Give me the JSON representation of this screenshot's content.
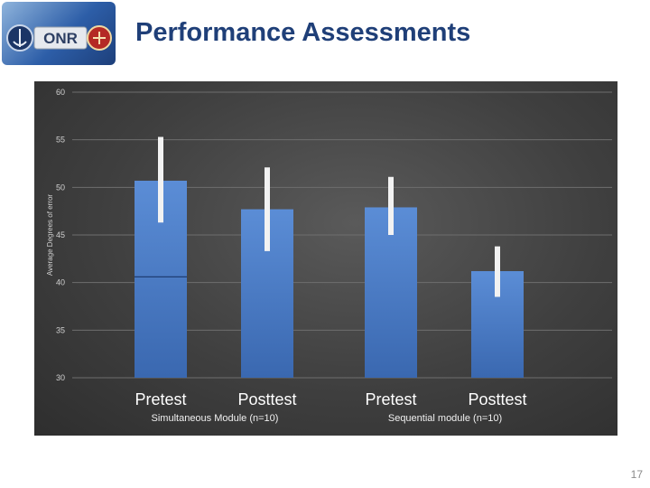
{
  "header": {
    "title": "Performance Assessments",
    "logo_text": "ONR"
  },
  "page": {
    "number": "17"
  },
  "chart_data": {
    "type": "bar",
    "ylabel": "Average Degrees of error",
    "ylim": [
      30,
      60
    ],
    "yticks": [
      30,
      35,
      40,
      45,
      50,
      55,
      60
    ],
    "grid": true,
    "groups": [
      {
        "label": "Simultaneous Module (n=10)",
        "bars": [
          {
            "category": "Pretest",
            "value": 50.7,
            "err_low": 46.3,
            "err_high": 55.3,
            "inner_line": 40.6
          },
          {
            "category": "Posttest",
            "value": 47.7,
            "err_low": 43.3,
            "err_high": 52.1
          }
        ]
      },
      {
        "label": "Sequential module (n=10)",
        "bars": [
          {
            "category": "Pretest",
            "value": 47.9,
            "err_low": 45.0,
            "err_high": 51.1
          },
          {
            "category": "Posttest",
            "value": 41.2,
            "err_low": 38.5,
            "err_high": 43.8
          }
        ]
      }
    ],
    "colors": {
      "bar_top": "#5b8dd6",
      "bar_bottom": "#3a68b0",
      "error_bar": "#f2f2f2",
      "grid": "#6e6e6e",
      "tick_text": "#d0d0d0",
      "category_text": "#ffffff",
      "group_text": "#f0f0f0"
    }
  }
}
